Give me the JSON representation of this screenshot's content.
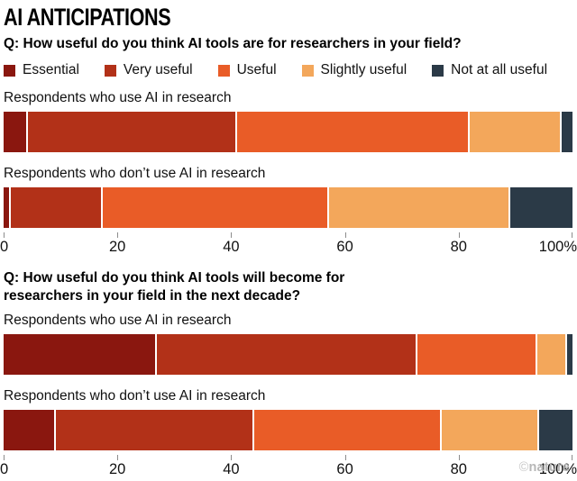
{
  "header": {
    "title": "AI ANTICIPATIONS"
  },
  "credit": {
    "symbol": "©",
    "text": "nature"
  },
  "legend": [
    {
      "label": "Essential",
      "color": "#8a170f"
    },
    {
      "label": "Very useful",
      "color": "#b23118"
    },
    {
      "label": "Useful",
      "color": "#e95c27"
    },
    {
      "label": "Slightly useful",
      "color": "#f3a75b"
    },
    {
      "label": "Not at all useful",
      "color": "#2b3a47"
    }
  ],
  "chart_data": [
    {
      "type": "bar",
      "stacked": true,
      "orientation": "horizontal",
      "title": "Q: How useful do you think AI tools are for researchers in your field?",
      "categories": [
        "Respondents who use AI in research",
        "Respondents who don’t use AI in research"
      ],
      "series": [
        {
          "name": "Essential",
          "color": "#8a170f",
          "values": [
            4,
            1
          ]
        },
        {
          "name": "Very useful",
          "color": "#b23118",
          "values": [
            37,
            16
          ]
        },
        {
          "name": "Useful",
          "color": "#e95c27",
          "values": [
            41,
            40
          ]
        },
        {
          "name": "Slightly useful",
          "color": "#f3a75b",
          "values": [
            16,
            32
          ]
        },
        {
          "name": "Not at all useful",
          "color": "#2b3a47",
          "values": [
            2,
            11
          ]
        }
      ],
      "xlim": [
        0,
        100
      ],
      "xticks": [
        {
          "pos": 0,
          "label": "0"
        },
        {
          "pos": 20,
          "label": "20"
        },
        {
          "pos": 40,
          "label": "40"
        },
        {
          "pos": 60,
          "label": "60"
        },
        {
          "pos": 80,
          "label": "80"
        },
        {
          "pos": 100,
          "label": "100%"
        }
      ],
      "legend_position": "top",
      "grid": false,
      "show_legend": true,
      "wrap_title": false
    },
    {
      "type": "bar",
      "stacked": true,
      "orientation": "horizontal",
      "title": "Q: How useful do you think AI tools will become for researchers in your field in the next decade?",
      "categories": [
        "Respondents who use AI in research",
        "Respondents who don’t use AI in research"
      ],
      "series": [
        {
          "name": "Essential",
          "color": "#8a170f",
          "values": [
            27,
            9
          ]
        },
        {
          "name": "Very useful",
          "color": "#b23118",
          "values": [
            46,
            35
          ]
        },
        {
          "name": "Useful",
          "color": "#e95c27",
          "values": [
            21,
            33
          ]
        },
        {
          "name": "Slightly useful",
          "color": "#f3a75b",
          "values": [
            5,
            17
          ]
        },
        {
          "name": "Not at all useful",
          "color": "#2b3a47",
          "values": [
            1,
            6
          ]
        }
      ],
      "xlim": [
        0,
        100
      ],
      "xticks": [
        {
          "pos": 0,
          "label": "0"
        },
        {
          "pos": 20,
          "label": "20"
        },
        {
          "pos": 40,
          "label": "40"
        },
        {
          "pos": 60,
          "label": "60"
        },
        {
          "pos": 80,
          "label": "80"
        },
        {
          "pos": 100,
          "label": "100%"
        }
      ],
      "legend_position": "none",
      "grid": false,
      "show_legend": false,
      "wrap_title": true
    }
  ]
}
